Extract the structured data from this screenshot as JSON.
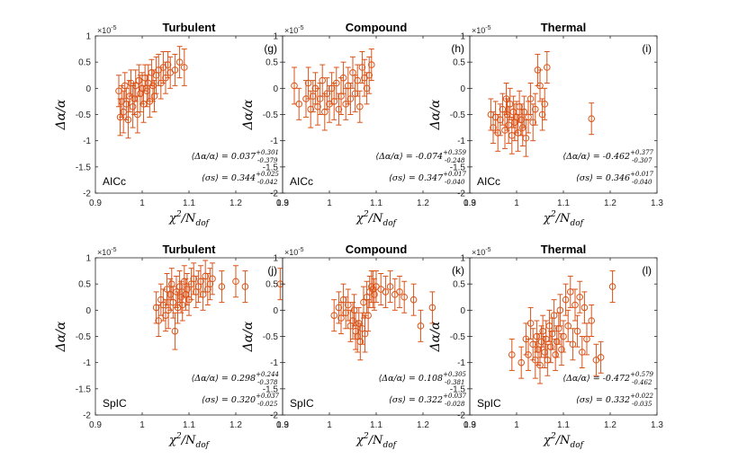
{
  "figure": {
    "xlabel_main": "χ",
    "xlabel_sup": "2",
    "xlabel_rest": "/N",
    "xlabel_sub": "dof",
    "ylabel": "Δα/α",
    "exponent_prefix": "×10",
    "exponent_power": "-5",
    "series_color": "#d95319"
  },
  "chart_data": [
    {
      "type": "scatter",
      "title": "Turbulent",
      "panel": "(g)",
      "method": "AICc",
      "xlim": [
        0.9,
        1.3
      ],
      "ylim": [
        -2,
        1
      ],
      "xticks": [
        "0.9",
        "1",
        "1.1",
        "1.2",
        "1.3"
      ],
      "yticks": [
        "1",
        "0.5",
        "0",
        "-0.5",
        "-1",
        "-1.5",
        "-2"
      ],
      "mean_label": "⟨Δα/α⟩",
      "mean_val": "0.037",
      "mean_up": "+0.301",
      "mean_dn": "-0.379",
      "sigma_label": "⟨σs⟩",
      "sigma_val": "0.344",
      "sigma_up": "+0.025",
      "sigma_dn": "-0.042",
      "points": [
        [
          0.95,
          -0.05,
          0.3
        ],
        [
          0.953,
          -0.55,
          0.35
        ],
        [
          0.956,
          -0.25,
          0.3
        ],
        [
          0.96,
          -0.45,
          0.4
        ],
        [
          0.963,
          0.05,
          0.25
        ],
        [
          0.966,
          -0.3,
          0.3
        ],
        [
          0.97,
          -0.6,
          0.35
        ],
        [
          0.973,
          -0.15,
          0.3
        ],
        [
          0.976,
          0.1,
          0.25
        ],
        [
          0.98,
          -0.35,
          0.4
        ],
        [
          0.983,
          -0.2,
          0.3
        ],
        [
          0.986,
          0.05,
          0.3
        ],
        [
          0.99,
          -0.5,
          0.35
        ],
        [
          0.993,
          0.15,
          0.3
        ],
        [
          0.996,
          -0.1,
          0.35
        ],
        [
          1.0,
          0.0,
          0.3
        ],
        [
          1.003,
          -0.3,
          0.35
        ],
        [
          1.006,
          0.2,
          0.25
        ],
        [
          1.01,
          -0.05,
          0.3
        ],
        [
          1.013,
          0.1,
          0.35
        ],
        [
          1.016,
          -0.25,
          0.3
        ],
        [
          1.02,
          0.3,
          0.25
        ],
        [
          1.023,
          0.05,
          0.3
        ],
        [
          1.026,
          -0.15,
          0.3
        ],
        [
          1.03,
          0.25,
          0.35
        ],
        [
          1.035,
          0.35,
          0.3
        ],
        [
          1.04,
          0.1,
          0.3
        ],
        [
          1.045,
          0.4,
          0.3
        ],
        [
          1.05,
          0.2,
          0.3
        ],
        [
          1.055,
          0.45,
          0.25
        ],
        [
          1.06,
          0.3,
          0.3
        ],
        [
          1.07,
          0.35,
          0.3
        ],
        [
          1.08,
          0.5,
          0.3
        ],
        [
          1.09,
          0.4,
          0.35
        ]
      ]
    },
    {
      "type": "scatter",
      "title": "Compound",
      "panel": "(h)",
      "method": "AICc",
      "xlim": [
        0.9,
        1.3
      ],
      "ylim": [
        -2,
        1
      ],
      "xticks": [
        "0.9",
        "1",
        "1.1",
        "1.2",
        "1.3"
      ],
      "yticks": [
        "1",
        "0.5",
        "0",
        "-0.5",
        "-1",
        "-1.5",
        "-2"
      ],
      "mean_label": "⟨Δα/α⟩",
      "mean_val": "-0.074",
      "mean_up": "+0.359",
      "mean_dn": "-0.248",
      "sigma_label": "⟨σs⟩",
      "sigma_val": "0.347",
      "sigma_up": "+0.017",
      "sigma_dn": "-0.040",
      "points": [
        [
          0.925,
          0.05,
          0.35
        ],
        [
          0.935,
          -0.3,
          0.3
        ],
        [
          0.95,
          -0.2,
          0.35
        ],
        [
          0.955,
          0.1,
          0.3
        ],
        [
          0.96,
          -0.4,
          0.35
        ],
        [
          0.965,
          -0.15,
          0.3
        ],
        [
          0.97,
          0.0,
          0.3
        ],
        [
          0.975,
          -0.35,
          0.35
        ],
        [
          0.98,
          -0.2,
          0.3
        ],
        [
          0.985,
          0.15,
          0.3
        ],
        [
          0.99,
          -0.45,
          0.35
        ],
        [
          0.995,
          -0.1,
          0.3
        ],
        [
          1.0,
          -0.3,
          0.35
        ],
        [
          1.005,
          0.0,
          0.3
        ],
        [
          1.01,
          -0.25,
          0.35
        ],
        [
          1.015,
          0.1,
          0.3
        ],
        [
          1.02,
          -0.4,
          0.3
        ],
        [
          1.025,
          -0.15,
          0.35
        ],
        [
          1.03,
          0.2,
          0.3
        ],
        [
          1.035,
          -0.3,
          0.3
        ],
        [
          1.04,
          0.05,
          0.35
        ],
        [
          1.045,
          -0.2,
          0.3
        ],
        [
          1.05,
          0.3,
          0.3
        ],
        [
          1.055,
          -0.1,
          0.35
        ],
        [
          1.06,
          0.15,
          0.3
        ],
        [
          1.065,
          -0.35,
          0.3
        ],
        [
          1.07,
          0.4,
          0.3
        ],
        [
          1.075,
          0.2,
          0.35
        ],
        [
          1.08,
          0.0,
          0.3
        ],
        [
          1.085,
          0.25,
          0.35
        ],
        [
          1.09,
          0.45,
          0.3
        ]
      ]
    },
    {
      "type": "scatter",
      "title": "Thermal",
      "panel": "(i)",
      "method": "AICc",
      "xlim": [
        0.9,
        1.3
      ],
      "ylim": [
        -2,
        1
      ],
      "xticks": [
        "0.9",
        "1",
        "1.1",
        "1.2",
        "1.3"
      ],
      "yticks": [
        "1",
        "0.5",
        "0",
        "-0.5",
        "-1",
        "-1.5",
        "-2"
      ],
      "mean_label": "⟨Δα/α⟩",
      "mean_val": "-0.462",
      "mean_up": "+0.377",
      "mean_dn": "-0.307",
      "sigma_label": "⟨σs⟩",
      "sigma_val": "0.346",
      "sigma_up": "+0.017",
      "sigma_dn": "-0.040",
      "points": [
        [
          0.945,
          -0.5,
          0.3
        ],
        [
          0.95,
          -0.75,
          0.3
        ],
        [
          0.955,
          -0.55,
          0.3
        ],
        [
          0.96,
          -0.85,
          0.35
        ],
        [
          0.965,
          -0.6,
          0.3
        ],
        [
          0.97,
          -0.4,
          0.3
        ],
        [
          0.975,
          -0.8,
          0.35
        ],
        [
          0.978,
          -0.2,
          0.3
        ],
        [
          0.98,
          -0.5,
          0.3
        ],
        [
          0.983,
          -0.7,
          0.35
        ],
        [
          0.986,
          -0.3,
          0.3
        ],
        [
          0.99,
          -0.9,
          0.35
        ],
        [
          0.993,
          -0.45,
          0.3
        ],
        [
          0.996,
          -0.65,
          0.35
        ],
        [
          1.0,
          -0.55,
          0.3
        ],
        [
          1.003,
          -0.85,
          0.35
        ],
        [
          1.006,
          -0.35,
          0.3
        ],
        [
          1.01,
          -0.6,
          0.3
        ],
        [
          1.013,
          -0.75,
          0.35
        ],
        [
          1.016,
          -0.45,
          0.3
        ],
        [
          1.02,
          -0.95,
          0.35
        ],
        [
          1.025,
          -0.55,
          0.3
        ],
        [
          1.03,
          -0.2,
          0.3
        ],
        [
          1.035,
          -0.65,
          0.35
        ],
        [
          1.04,
          -0.4,
          0.3
        ],
        [
          1.045,
          0.35,
          0.3
        ],
        [
          1.05,
          0.05,
          0.3
        ],
        [
          1.055,
          -0.5,
          0.3
        ],
        [
          1.06,
          -0.3,
          0.3
        ],
        [
          1.065,
          0.4,
          0.3
        ],
        [
          1.16,
          -0.58,
          0.3
        ]
      ]
    },
    {
      "type": "scatter",
      "title": "Turbulent",
      "panel": "(j)",
      "method": "SpIC",
      "xlim": [
        0.9,
        1.3
      ],
      "ylim": [
        -2,
        1
      ],
      "xticks": [
        "0.9",
        "1",
        "1.1",
        "1.2",
        "1.3"
      ],
      "yticks": [
        "1",
        "0.5",
        "0",
        "-0.5",
        "-1",
        "-1.5",
        "-2"
      ],
      "mean_label": "⟨Δα/α⟩",
      "mean_val": "0.298",
      "mean_up": "+0.244",
      "mean_dn": "-0.378",
      "sigma_label": "⟨σs⟩",
      "sigma_val": "0.320",
      "sigma_up": "+0.037",
      "sigma_dn": "-0.025",
      "points": [
        [
          1.03,
          0.05,
          0.3
        ],
        [
          1.035,
          -0.2,
          0.3
        ],
        [
          1.04,
          0.2,
          0.3
        ],
        [
          1.045,
          0.1,
          0.3
        ],
        [
          1.05,
          -0.1,
          0.3
        ],
        [
          1.053,
          0.4,
          0.3
        ],
        [
          1.056,
          0.0,
          0.35
        ],
        [
          1.06,
          0.3,
          0.3
        ],
        [
          1.063,
          0.5,
          0.3
        ],
        [
          1.066,
          0.15,
          0.3
        ],
        [
          1.07,
          -0.4,
          0.35
        ],
        [
          1.073,
          0.35,
          0.3
        ],
        [
          1.076,
          0.05,
          0.3
        ],
        [
          1.08,
          0.45,
          0.3
        ],
        [
          1.083,
          0.25,
          0.3
        ],
        [
          1.086,
          0.1,
          0.3
        ],
        [
          1.09,
          0.55,
          0.3
        ],
        [
          1.093,
          0.3,
          0.3
        ],
        [
          1.096,
          0.4,
          0.3
        ],
        [
          1.1,
          0.2,
          0.3
        ],
        [
          1.105,
          0.5,
          0.3
        ],
        [
          1.11,
          0.6,
          0.3
        ],
        [
          1.115,
          0.35,
          0.3
        ],
        [
          1.12,
          0.45,
          0.3
        ],
        [
          1.125,
          0.55,
          0.3
        ],
        [
          1.13,
          0.3,
          0.3
        ],
        [
          1.135,
          0.65,
          0.3
        ],
        [
          1.14,
          0.4,
          0.3
        ],
        [
          1.145,
          0.5,
          0.3
        ],
        [
          1.15,
          0.6,
          0.3
        ],
        [
          1.17,
          0.45,
          0.3
        ],
        [
          1.2,
          0.55,
          0.3
        ],
        [
          1.22,
          0.45,
          0.3
        ],
        [
          1.295,
          0.5,
          0.3
        ]
      ]
    },
    {
      "type": "scatter",
      "title": "Compound",
      "panel": "(k)",
      "method": "SpIC",
      "xlim": [
        0.9,
        1.3
      ],
      "ylim": [
        -2,
        1
      ],
      "xticks": [
        "0.9",
        "1",
        "1.1",
        "1.2",
        "1.3"
      ],
      "yticks": [
        "1",
        "0.5",
        "0",
        "-0.5",
        "-1",
        "-1.5",
        "-2"
      ],
      "mean_label": "⟨Δα/α⟩",
      "mean_val": "0.108",
      "mean_up": "+0.305",
      "mean_dn": "-0.381",
      "sigma_label": "⟨σs⟩",
      "sigma_val": "0.322",
      "sigma_up": "+0.037",
      "sigma_dn": "-0.028",
      "points": [
        [
          1.01,
          -0.1,
          0.3
        ],
        [
          1.02,
          0.05,
          0.3
        ],
        [
          1.025,
          -0.15,
          0.3
        ],
        [
          1.03,
          0.2,
          0.3
        ],
        [
          1.035,
          -0.05,
          0.3
        ],
        [
          1.04,
          0.1,
          0.3
        ],
        [
          1.045,
          -0.3,
          0.3
        ],
        [
          1.05,
          -0.2,
          0.35
        ],
        [
          1.053,
          0.0,
          0.3
        ],
        [
          1.056,
          -0.4,
          0.35
        ],
        [
          1.06,
          -0.5,
          0.3
        ],
        [
          1.063,
          -0.25,
          0.3
        ],
        [
          1.066,
          -0.6,
          0.35
        ],
        [
          1.07,
          -0.35,
          0.3
        ],
        [
          1.073,
          0.15,
          0.3
        ],
        [
          1.076,
          -0.45,
          0.35
        ],
        [
          1.08,
          0.25,
          0.3
        ],
        [
          1.083,
          -0.1,
          0.3
        ],
        [
          1.086,
          0.35,
          0.3
        ],
        [
          1.09,
          0.45,
          0.3
        ],
        [
          1.093,
          0.4,
          0.35
        ],
        [
          1.096,
          0.3,
          0.3
        ],
        [
          1.1,
          0.45,
          0.3
        ],
        [
          1.11,
          0.4,
          0.3
        ],
        [
          1.12,
          0.35,
          0.3
        ],
        [
          1.13,
          0.45,
          0.3
        ],
        [
          1.14,
          0.3,
          0.3
        ],
        [
          1.15,
          0.35,
          0.3
        ],
        [
          1.16,
          0.25,
          0.3
        ],
        [
          1.18,
          0.2,
          0.3
        ],
        [
          1.195,
          -0.3,
          0.3
        ],
        [
          1.22,
          0.05,
          0.3
        ]
      ]
    },
    {
      "type": "scatter",
      "title": "Thermal",
      "panel": "(l)",
      "method": "SpIC",
      "xlim": [
        0.9,
        1.3
      ],
      "ylim": [
        -2,
        1
      ],
      "xticks": [
        "0.9",
        "1",
        "1.1",
        "1.2",
        "1.3"
      ],
      "yticks": [
        "1",
        "0.5",
        "0",
        "-0.5",
        "-1",
        "-1.5",
        "-2"
      ],
      "mean_label": "⟨Δα/α⟩",
      "mean_val": "-0.472",
      "mean_up": "+0.579",
      "mean_dn": "-0.462",
      "sigma_label": "⟨σs⟩",
      "sigma_val": "0.332",
      "sigma_up": "+0.022",
      "sigma_dn": "-0.035",
      "points": [
        [
          0.99,
          -0.85,
          0.3
        ],
        [
          1.01,
          -1.0,
          0.3
        ],
        [
          1.02,
          -0.55,
          0.3
        ],
        [
          1.025,
          -0.85,
          0.3
        ],
        [
          1.03,
          -0.25,
          0.3
        ],
        [
          1.035,
          -0.65,
          0.3
        ],
        [
          1.04,
          -0.95,
          0.35
        ],
        [
          1.043,
          -0.5,
          0.3
        ],
        [
          1.046,
          -0.75,
          0.3
        ],
        [
          1.05,
          -1.05,
          0.35
        ],
        [
          1.053,
          -0.6,
          0.3
        ],
        [
          1.056,
          -0.4,
          0.3
        ],
        [
          1.06,
          -0.8,
          0.3
        ],
        [
          1.063,
          -0.55,
          0.35
        ],
        [
          1.066,
          -0.95,
          0.3
        ],
        [
          1.07,
          -0.3,
          0.3
        ],
        [
          1.073,
          -0.7,
          0.3
        ],
        [
          1.076,
          -0.45,
          0.3
        ],
        [
          1.08,
          -0.1,
          0.3
        ],
        [
          1.083,
          -0.85,
          0.3
        ],
        [
          1.086,
          -0.6,
          0.3
        ],
        [
          1.09,
          -0.35,
          0.3
        ],
        [
          1.093,
          0.0,
          0.3
        ],
        [
          1.096,
          -0.75,
          0.3
        ],
        [
          1.1,
          -0.5,
          0.3
        ],
        [
          1.105,
          0.2,
          0.3
        ],
        [
          1.11,
          -0.3,
          0.3
        ],
        [
          1.115,
          0.35,
          0.3
        ],
        [
          1.12,
          -0.65,
          0.3
        ],
        [
          1.125,
          0.1,
          0.3
        ],
        [
          1.13,
          -0.4,
          0.3
        ],
        [
          1.135,
          0.25,
          0.3
        ],
        [
          1.14,
          -0.8,
          0.3
        ],
        [
          1.145,
          0.05,
          0.3
        ],
        [
          1.15,
          -0.55,
          0.3
        ],
        [
          1.16,
          -0.2,
          0.3
        ],
        [
          1.17,
          -0.95,
          0.3
        ],
        [
          1.18,
          -0.9,
          0.3
        ],
        [
          1.205,
          0.45,
          0.3
        ]
      ]
    }
  ]
}
